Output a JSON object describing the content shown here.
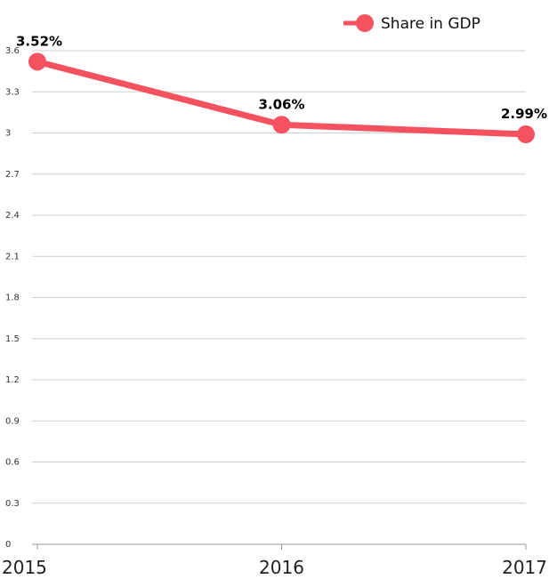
{
  "chart_data": {
    "type": "line",
    "categories": [
      "2015",
      "2016",
      "2017"
    ],
    "series": [
      {
        "name": "Share in GDP",
        "values": [
          3.52,
          3.06,
          2.99
        ],
        "labels": [
          "3.52%",
          "3.06%",
          "2.99%"
        ],
        "color": "#f4525f"
      }
    ],
    "ylim": [
      0,
      3.6
    ],
    "yticks": [
      "0",
      "0.3",
      "0.6",
      "0.9",
      "1.2",
      "1.5",
      "1.8",
      "2.1",
      "2.4",
      "2.7",
      "3",
      "3.3",
      "3.6"
    ],
    "grid": true,
    "legend_position": "top-right"
  }
}
